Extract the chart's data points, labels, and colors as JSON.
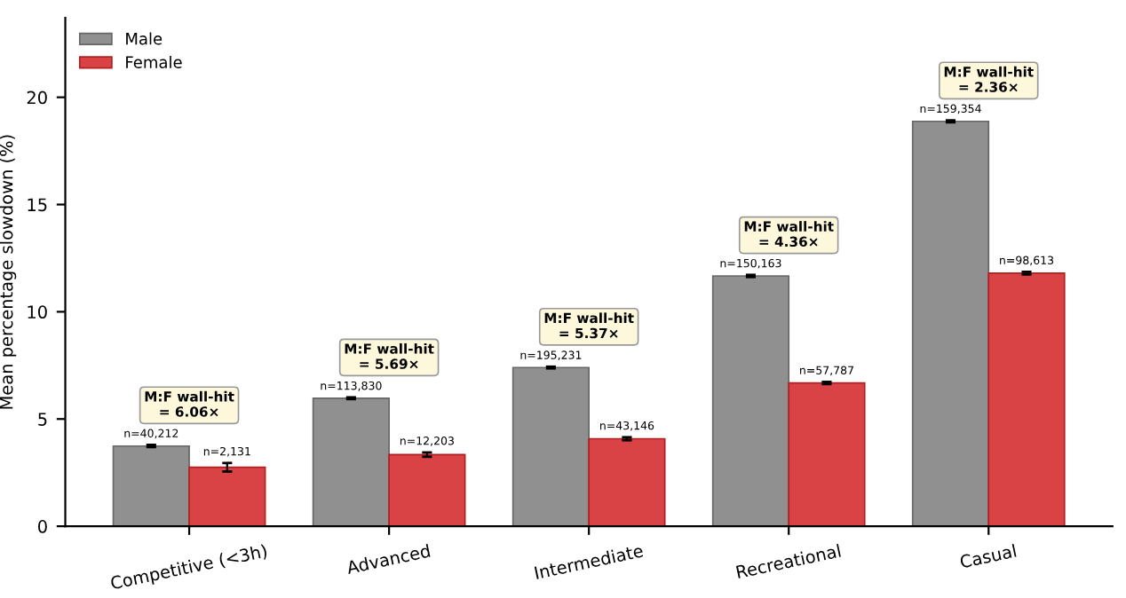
{
  "chart_data": {
    "type": "bar",
    "ylabel": "Mean percentage slowdown (%)",
    "categories": [
      "Competitive (<3h)",
      "Advanced",
      "Intermediate",
      "Recreational",
      "Casual"
    ],
    "series": [
      {
        "name": "Male",
        "color": "#909090",
        "values": [
          3.74,
          5.97,
          7.4,
          11.67,
          18.88
        ],
        "errors": [
          0.05,
          0.04,
          0.04,
          0.05,
          0.05
        ]
      },
      {
        "name": "Female",
        "color": "#d94345",
        "values": [
          2.75,
          3.34,
          4.08,
          6.68,
          11.8
        ],
        "errors": [
          0.2,
          0.1,
          0.07,
          0.05,
          0.06
        ]
      }
    ],
    "annotations": [
      {
        "text": "n=40,212",
        "x": "Competitive (<3h)",
        "y": 3.74
      },
      {
        "text": "n=113,830",
        "x": "Advanced",
        "y": 5.97
      },
      {
        "text": "n=195,231",
        "x": "Intermediate",
        "y": 7.4
      },
      {
        "text": "n=150,163",
        "x": "Recreational",
        "y": 11.67
      },
      {
        "text": "n=159,354",
        "x": "Casual",
        "y": 18.88
      },
      {
        "text": "n=2,131",
        "x": "Competitive (<3h)",
        "y": 2.75
      },
      {
        "text": "n=12,203",
        "x": "Advanced",
        "y": 3.34
      },
      {
        "text": "n=43,146",
        "x": "Intermediate",
        "y": 4.08
      },
      {
        "text": "n=57,787",
        "x": "Recreational",
        "y": 6.68
      },
      {
        "text": "n=98,613",
        "x": "Casual",
        "y": 11.8
      },
      "M:F wall-hit\n= 6.06×",
      "M:F wall-hit\n= 5.69×",
      "M:F wall-hit\n= 5.37×",
      "M:F wall-hit\n= 4.36×",
      "M:F wall-hit\n= 2.36×"
    ],
    "ylim": [
      0,
      23.7
    ],
    "yticks": [
      0,
      5,
      10,
      15,
      20
    ],
    "grid": false,
    "legend": "top left"
  }
}
